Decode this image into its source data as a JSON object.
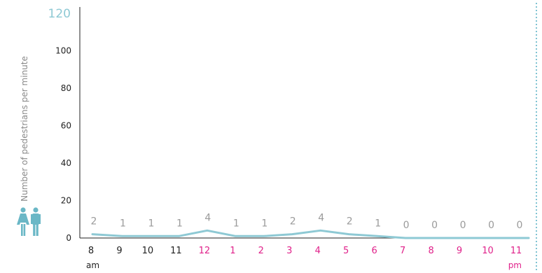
{
  "chart_data": {
    "type": "line",
    "title": "",
    "ylabel": "Number of pedestrians per minute",
    "xlabel": "",
    "ylim": [
      0,
      120
    ],
    "yticks": [
      0,
      20,
      40,
      60,
      80,
      100,
      120
    ],
    "categories": [
      "8",
      "9",
      "10",
      "11",
      "12",
      "1",
      "2",
      "3",
      "4",
      "5",
      "6",
      "7",
      "8",
      "9",
      "10",
      "11"
    ],
    "category_colors": [
      "#222222",
      "#222222",
      "#222222",
      "#222222",
      "#e0218a",
      "#e0218a",
      "#e0218a",
      "#e0218a",
      "#e0218a",
      "#e0218a",
      "#e0218a",
      "#e0218a",
      "#e0218a",
      "#e0218a",
      "#e0218a",
      "#e0218a"
    ],
    "am_label": "am",
    "pm_label": "pm",
    "values": [
      2,
      1,
      1,
      1,
      4,
      1,
      1,
      2,
      4,
      2,
      1,
      0,
      0,
      0,
      0,
      0
    ],
    "line_color": "#8ec9d4",
    "grid": false,
    "legend": "none",
    "icon": "pedestrians-icon"
  }
}
